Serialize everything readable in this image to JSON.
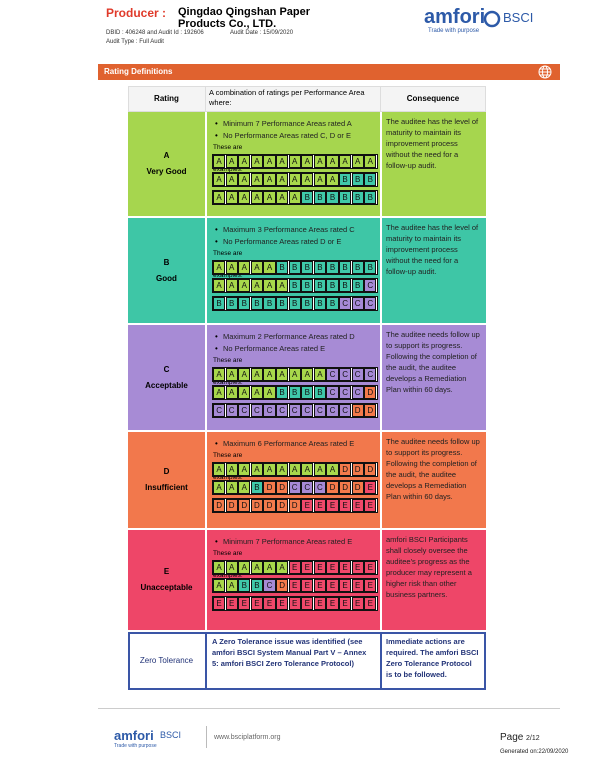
{
  "header": {
    "producer_label": "Producer :",
    "producer_name": "Qingdao Qingshan Paper Products Co., LTD.",
    "ids": "DBID : 406248 and Audit Id : 192606",
    "audit_date": "Audit Date : 15/09/2020",
    "audit_type": "Audit Type : Full Audit",
    "logo": "amfori",
    "logo_sub": "BSCI",
    "tagline": "Trade with purpose"
  },
  "section_title": "Rating Definitions",
  "table": {
    "headers": [
      "Rating",
      "A combination of ratings per Performance Area where:",
      "Consequence"
    ],
    "examples_label": "These are three examples:",
    "cell_colors": {
      "A": "#a8d84b",
      "B": "#3fc9a9",
      "C": "#a68ad6",
      "D": "#f47a4b",
      "E": "#f0486a"
    },
    "rows": [
      {
        "grade": "A",
        "label": "Very Good",
        "color": "#a6d64e",
        "bullets": [
          "Minimum 7 Performance Areas rated A",
          "No Performance Areas rated C, D or E"
        ],
        "examples": [
          [
            "A",
            "A",
            "A",
            "A",
            "A",
            "A",
            "A",
            "A",
            "A",
            "A",
            "A",
            "A",
            "A"
          ],
          [
            "A",
            "A",
            "A",
            "A",
            "A",
            "A",
            "A",
            "A",
            "A",
            "A",
            "B",
            "B",
            "B"
          ],
          [
            "A",
            "A",
            "A",
            "A",
            "A",
            "A",
            "A",
            "B",
            "B",
            "B",
            "B",
            "B",
            "B"
          ]
        ],
        "consequence": "The auditee has the level of maturity to maintain its improvement process without the need for a follow-up audit."
      },
      {
        "grade": "B",
        "label": "Good",
        "color": "#3ec6a6",
        "bullets": [
          "Maximum 3 Performance Areas rated C",
          "No Performance Areas rated D or E"
        ],
        "examples": [
          [
            "A",
            "A",
            "A",
            "A",
            "A",
            "B",
            "B",
            "B",
            "B",
            "B",
            "B",
            "B",
            "B"
          ],
          [
            "A",
            "A",
            "A",
            "A",
            "A",
            "A",
            "B",
            "B",
            "B",
            "B",
            "B",
            "B",
            "C"
          ],
          [
            "B",
            "B",
            "B",
            "B",
            "B",
            "B",
            "B",
            "B",
            "B",
            "B",
            "C",
            "C",
            "C"
          ]
        ],
        "consequence": "The auditee has the level of maturity to maintain its improvement process without the need for a follow-up audit."
      },
      {
        "grade": "C",
        "label": "Acceptable",
        "color": "#a78bd5",
        "bullets": [
          "Maximum 2 Performance Areas rated D",
          "No Performance Areas rated E"
        ],
        "examples": [
          [
            "A",
            "A",
            "A",
            "A",
            "A",
            "A",
            "A",
            "A",
            "A",
            "C",
            "C",
            "C",
            "C"
          ],
          [
            "A",
            "A",
            "A",
            "A",
            "A",
            "B",
            "B",
            "B",
            "B",
            "C",
            "C",
            "C",
            "D"
          ],
          [
            "C",
            "C",
            "C",
            "C",
            "C",
            "C",
            "C",
            "C",
            "C",
            "C",
            "C",
            "D",
            "D"
          ]
        ],
        "consequence": "The auditee needs follow up to support its progress. Following the completion of the audit, the auditee develops a Remediation Plan within 60 days."
      },
      {
        "grade": "D",
        "label": "Insufficient",
        "color": "#f2784c",
        "bullets": [
          "Maximum 6 Performance Areas rated E"
        ],
        "examples": [
          [
            "A",
            "A",
            "A",
            "A",
            "A",
            "A",
            "A",
            "A",
            "A",
            "A",
            "D",
            "D",
            "D"
          ],
          [
            "A",
            "A",
            "A",
            "B",
            "D",
            "D",
            "C",
            "C",
            "C",
            "D",
            "D",
            "D",
            "E"
          ],
          [
            "D",
            "D",
            "D",
            "D",
            "D",
            "D",
            "D",
            "E",
            "E",
            "E",
            "E",
            "E",
            "E"
          ]
        ],
        "consequence": "The auditee needs follow up to support its progress. Following the completion of the audit, the auditee develops a Remediation Plan within 60 days."
      },
      {
        "grade": "E",
        "label": "Unacceptable",
        "color": "#ee4668",
        "bullets": [
          "Minimum 7 Performance Areas rated E"
        ],
        "examples": [
          [
            "A",
            "A",
            "A",
            "A",
            "A",
            "A",
            "E",
            "E",
            "E",
            "E",
            "E",
            "E",
            "E"
          ],
          [
            "A",
            "A",
            "B",
            "B",
            "C",
            "D",
            "E",
            "E",
            "E",
            "E",
            "E",
            "E",
            "E"
          ],
          [
            "E",
            "E",
            "E",
            "E",
            "E",
            "E",
            "E",
            "E",
            "E",
            "E",
            "E",
            "E",
            "E"
          ]
        ],
        "consequence": "amfori BSCI Participants shall closely oversee the auditee's progress as the producer may represent a higher risk than other business partners."
      }
    ],
    "zero_tolerance": {
      "label": "Zero Tolerance",
      "condition": "A Zero Tolerance issue was identified (see amfori BSCI System Manual Part V – Annex 5: amfori BSCI Zero Tolerance Protocol)",
      "consequence": "Immediate actions are required. The amfori BSCI Zero Tolerance Protocol is to be followed."
    }
  },
  "footer": {
    "logo": "amfori",
    "logo_sub": "BSCI",
    "tagline": "Trade with purpose",
    "url": "www.bsciplatform.org",
    "page_label": "Page",
    "page_number": "2/12",
    "generated": "Generated on:22/09/2020"
  }
}
